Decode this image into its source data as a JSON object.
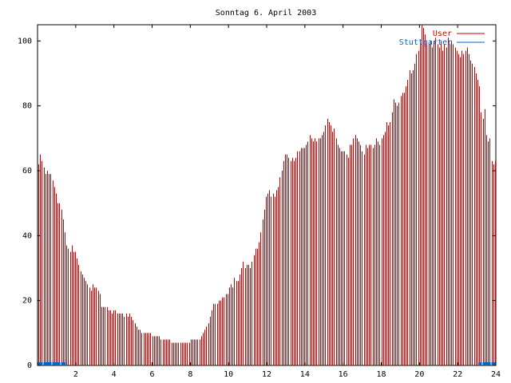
{
  "chart_data": {
    "type": "bar",
    "title": "Sonntag 6. April 2003",
    "xlabel": "",
    "ylabel": "",
    "xlim": [
      0,
      24
    ],
    "ylim": [
      0,
      105
    ],
    "x_ticks": [
      "2",
      "4",
      "6",
      "8",
      "10",
      "12",
      "14",
      "16",
      "18",
      "20",
      "22",
      "24"
    ],
    "y_ticks": [
      "0",
      "20",
      "40",
      "60",
      "80",
      "100"
    ],
    "grid": false,
    "legend": "top-right",
    "x_step_hours": 0.0833,
    "series": [
      {
        "name": "User",
        "color": "#cc0000",
        "values": [
          62,
          65,
          63,
          61,
          59,
          60,
          59,
          59,
          57,
          55,
          53,
          50,
          50,
          48,
          45,
          41,
          37,
          36,
          35,
          37,
          35,
          35,
          33,
          31,
          29,
          28,
          27,
          26,
          25,
          24,
          23,
          25,
          24,
          24,
          23,
          22,
          18,
          18,
          18,
          18,
          17,
          17,
          16,
          17,
          17,
          16,
          16,
          16,
          16,
          15,
          16,
          15,
          16,
          15,
          14,
          13,
          12,
          11,
          11,
          10,
          10,
          10,
          10,
          10,
          10,
          9,
          9,
          9,
          9,
          9,
          8,
          8,
          8,
          8,
          8,
          8,
          7,
          7,
          7,
          7,
          7,
          7,
          7,
          7,
          7,
          7,
          7,
          8,
          8,
          8,
          8,
          8,
          8,
          9,
          10,
          11,
          12,
          13,
          15,
          17,
          19,
          19,
          19,
          20,
          20,
          21,
          21,
          22,
          22,
          24,
          25,
          24,
          27,
          26,
          26,
          28,
          30,
          32,
          30,
          31,
          31,
          30,
          32,
          34,
          36,
          36,
          38,
          41,
          45,
          48,
          52,
          53,
          54,
          52,
          53,
          52,
          54,
          55,
          58,
          60,
          63,
          65,
          65,
          64,
          63,
          64,
          63,
          64,
          66,
          66,
          67,
          67,
          67,
          68,
          69,
          71,
          70,
          69,
          70,
          69,
          70,
          70,
          71,
          72,
          74,
          76,
          75,
          74,
          72,
          73,
          70,
          68,
          67,
          66,
          66,
          66,
          65,
          64,
          68,
          68,
          70,
          71,
          70,
          69,
          68,
          66,
          65,
          68,
          67,
          68,
          68,
          67,
          68,
          70,
          69,
          68,
          70,
          71,
          72,
          75,
          74,
          75,
          78,
          82,
          81,
          80,
          81,
          83,
          84,
          84,
          86,
          88,
          91,
          90,
          91,
          93,
          96,
          97,
          100,
          105,
          104,
          102,
          100,
          99,
          100,
          98,
          100,
          101,
          99,
          98,
          100,
          97,
          99,
          98,
          101,
          99,
          100,
          99,
          98,
          97,
          96,
          95,
          97,
          96,
          97,
          98,
          96,
          94,
          93,
          92,
          90,
          88,
          86,
          78,
          76,
          79,
          71,
          69,
          70,
          63,
          62,
          63
        ]
      },
      {
        "name": "Stuttgarter",
        "color": "#0066cc",
        "values": [
          1,
          1,
          1,
          1,
          1,
          1,
          1,
          1,
          1,
          1,
          1,
          1,
          1,
          1,
          1,
          1,
          0,
          0,
          0,
          0,
          0,
          0,
          0,
          0,
          0,
          0,
          0,
          0,
          0,
          0,
          0,
          0,
          0,
          0,
          0,
          0,
          0,
          0,
          0,
          0,
          0,
          0,
          0,
          0,
          0,
          0,
          0,
          0,
          0,
          0,
          0,
          0,
          0,
          0,
          0,
          0,
          0,
          0,
          0,
          0,
          0,
          0,
          0,
          0,
          0,
          0,
          0,
          0,
          0,
          0,
          0,
          0,
          0,
          0,
          0,
          0,
          0,
          0,
          0,
          0,
          0,
          0,
          0,
          0,
          0,
          0,
          0,
          0,
          0,
          0,
          0,
          0,
          0,
          0,
          0,
          0,
          0,
          0,
          0,
          0,
          0,
          0,
          0,
          0,
          0,
          0,
          0,
          0,
          0,
          0,
          0,
          0,
          0,
          0,
          0,
          0,
          0,
          0,
          0,
          0,
          0,
          0,
          0,
          0,
          0,
          0,
          0,
          0,
          0,
          0,
          0,
          0,
          0,
          0,
          0,
          0,
          0,
          0,
          0,
          0,
          0,
          0,
          0,
          0,
          0,
          0,
          0,
          0,
          0,
          0,
          0,
          0,
          0,
          0,
          0,
          0,
          0,
          0,
          0,
          0,
          0,
          0,
          0,
          0,
          0,
          0,
          0,
          0,
          0,
          0,
          0,
          0,
          0,
          0,
          0,
          0,
          0,
          0,
          0,
          0,
          0,
          0,
          0,
          0,
          0,
          0,
          0,
          0,
          0,
          0,
          0,
          0,
          0,
          0,
          0,
          0,
          0,
          0,
          0,
          0,
          0,
          0,
          0,
          0,
          0,
          0,
          0,
          0,
          0,
          0,
          0,
          0,
          0,
          0,
          0,
          0,
          0,
          0,
          0,
          0,
          0,
          0,
          0,
          0,
          0,
          0,
          0,
          0,
          0,
          0,
          0,
          0,
          0,
          0,
          0,
          0,
          0,
          0,
          0,
          0,
          0,
          0,
          0,
          0,
          0,
          0,
          0,
          0,
          0,
          0,
          0,
          0,
          1,
          1,
          1,
          1,
          1,
          1,
          1,
          1,
          1,
          1
        ]
      }
    ]
  }
}
